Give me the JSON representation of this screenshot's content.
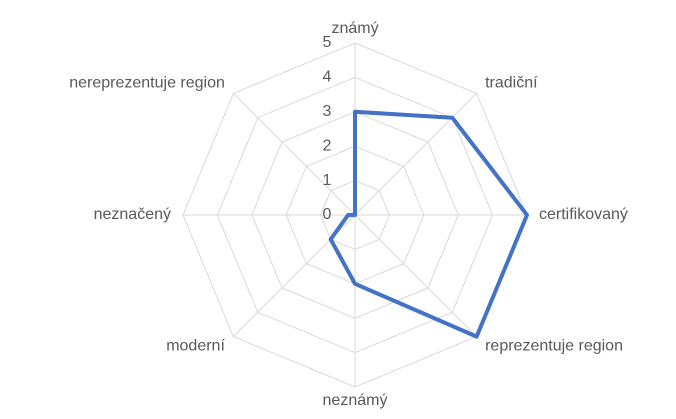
{
  "chart_data": {
    "type": "radar",
    "categories": [
      "známý",
      "tradiční",
      "certifikovaný",
      "reprezentuje region",
      "neznámý",
      "moderní",
      "neznačený",
      "nereprezentuje region"
    ],
    "values": [
      3,
      4,
      5,
      5,
      2,
      1,
      0.2,
      0
    ],
    "color": "#4472c4",
    "rlim": [
      0,
      5
    ],
    "rticks": [
      0,
      1,
      2,
      3,
      4,
      5
    ],
    "grid": true
  }
}
